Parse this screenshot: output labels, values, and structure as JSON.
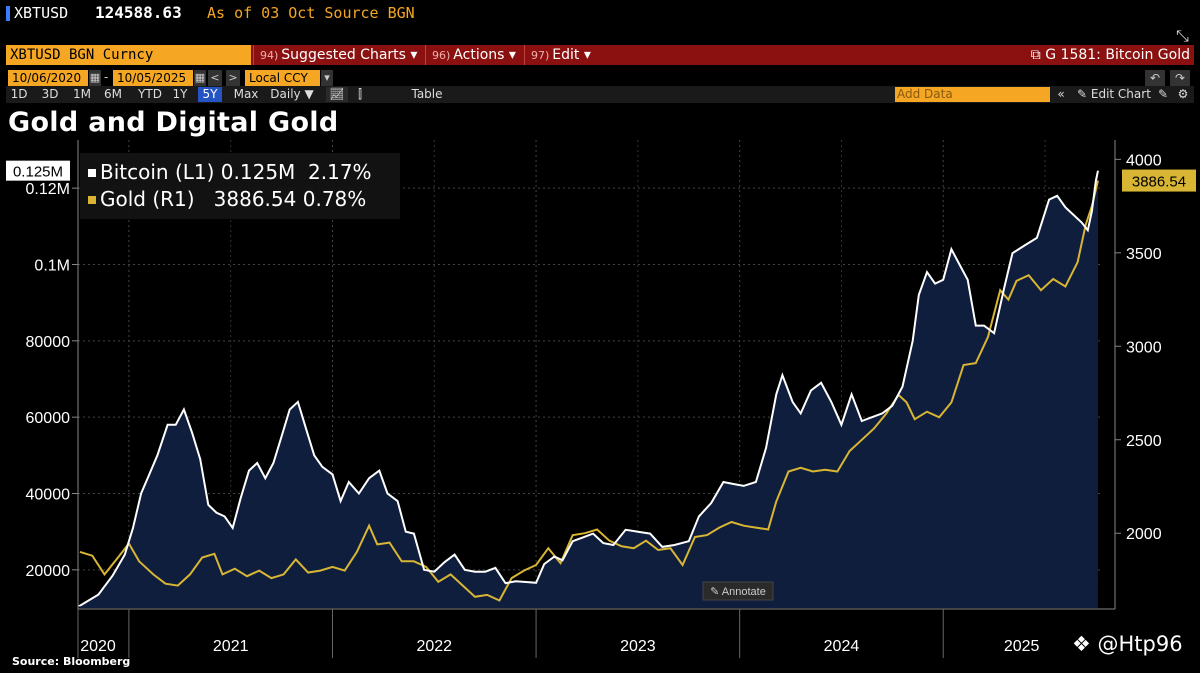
{
  "header": {
    "ticker": "XBTUSD",
    "price": "124588.63",
    "as_of": "As of 03 Oct",
    "source_label": "Source",
    "source_value": "BGN"
  },
  "command_bar": {
    "security": "XBTUSD BGN Curncy",
    "menus": [
      {
        "num": "94)",
        "label": "Suggested Charts ▾"
      },
      {
        "num": "96)",
        "label": "Actions ▾"
      },
      {
        "num": "97)",
        "label": "Edit ▾"
      }
    ],
    "chart_name": "G 1581: Bitcoin Gold"
  },
  "date_controls": {
    "start": "10/06/2020",
    "separator": "-",
    "end": "10/05/2025",
    "currency": "Local CCY"
  },
  "range_buttons": [
    "1D",
    "3D",
    "1M",
    "6M",
    "YTD",
    "1Y",
    "5Y",
    "Max"
  ],
  "active_range": "5Y",
  "frequency": "Daily ▼",
  "table_label": "Table",
  "add_data_placeholder": "Add Data",
  "edit_chart_label": "Edit Chart",
  "annotate_label": "Annotate",
  "source_note": "Source: Bloomberg",
  "watermark": "@Htp96",
  "colors": {
    "bitcoin": "#ffffff",
    "gold": "#d8b634",
    "area_fill": "#0f1e3d",
    "brand_orange": "#f5a623",
    "command_bar": "#8b1010"
  },
  "chart_data": {
    "type": "line",
    "title": "Gold and Digital Gold",
    "x_ticks": [
      "2020",
      "2021",
      "2022",
      "2023",
      "2024",
      "2025"
    ],
    "x_range": [
      2020.75,
      2025.77
    ],
    "left_axis": {
      "ticks": [
        "20000",
        "40000",
        "60000",
        "80000",
        "0.1M",
        "0.12M"
      ],
      "tick_values": [
        20000,
        40000,
        60000,
        80000,
        100000,
        120000
      ],
      "range": [
        10000,
        130000
      ]
    },
    "right_axis": {
      "ticks": [
        "2000",
        "2500",
        "3000",
        "3500",
        "4000"
      ],
      "tick_values": [
        2000,
        2500,
        3000,
        3500,
        4000
      ],
      "range": [
        1600,
        4050
      ]
    },
    "series": [
      {
        "name": "Bitcoin (L1)",
        "last_value": "0.125M",
        "change": "2.17%",
        "axis": "left",
        "area": true,
        "points": [
          [
            2020.76,
            10600
          ],
          [
            2020.85,
            13500
          ],
          [
            2020.92,
            18500
          ],
          [
            2020.98,
            24000
          ],
          [
            2021.02,
            31000
          ],
          [
            2021.06,
            40000
          ],
          [
            2021.1,
            45000
          ],
          [
            2021.14,
            50000
          ],
          [
            2021.19,
            58000
          ],
          [
            2021.23,
            58000
          ],
          [
            2021.27,
            62000
          ],
          [
            2021.31,
            56000
          ],
          [
            2021.35,
            49000
          ],
          [
            2021.39,
            37000
          ],
          [
            2021.43,
            35000
          ],
          [
            2021.47,
            34000
          ],
          [
            2021.51,
            31000
          ],
          [
            2021.55,
            39000
          ],
          [
            2021.59,
            46000
          ],
          [
            2021.63,
            48000
          ],
          [
            2021.67,
            44000
          ],
          [
            2021.71,
            48000
          ],
          [
            2021.75,
            55000
          ],
          [
            2021.79,
            62000
          ],
          [
            2021.83,
            64000
          ],
          [
            2021.87,
            57000
          ],
          [
            2021.91,
            50000
          ],
          [
            2021.95,
            47000
          ],
          [
            2022.0,
            45000
          ],
          [
            2022.04,
            38000
          ],
          [
            2022.08,
            43000
          ],
          [
            2022.13,
            40000
          ],
          [
            2022.18,
            44000
          ],
          [
            2022.23,
            46000
          ],
          [
            2022.27,
            40000
          ],
          [
            2022.32,
            38000
          ],
          [
            2022.36,
            30000
          ],
          [
            2022.4,
            29500
          ],
          [
            2022.45,
            20000
          ],
          [
            2022.5,
            19500
          ],
          [
            2022.55,
            22000
          ],
          [
            2022.6,
            24000
          ],
          [
            2022.65,
            20000
          ],
          [
            2022.7,
            19500
          ],
          [
            2022.75,
            19500
          ],
          [
            2022.8,
            20500
          ],
          [
            2022.85,
            16500
          ],
          [
            2022.9,
            17000
          ],
          [
            2022.95,
            16800
          ],
          [
            2023.0,
            16600
          ],
          [
            2023.04,
            21500
          ],
          [
            2023.09,
            23500
          ],
          [
            2023.13,
            22500
          ],
          [
            2023.18,
            27500
          ],
          [
            2023.23,
            28500
          ],
          [
            2023.28,
            29500
          ],
          [
            2023.33,
            27000
          ],
          [
            2023.38,
            26500
          ],
          [
            2023.44,
            30500
          ],
          [
            2023.5,
            30000
          ],
          [
            2023.56,
            29500
          ],
          [
            2023.62,
            26000
          ],
          [
            2023.68,
            26500
          ],
          [
            2023.75,
            27500
          ],
          [
            2023.8,
            34000
          ],
          [
            2023.86,
            37500
          ],
          [
            2023.92,
            43000
          ],
          [
            2023.97,
            42500
          ],
          [
            2024.02,
            42000
          ],
          [
            2024.08,
            43000
          ],
          [
            2024.13,
            52000
          ],
          [
            2024.18,
            66000
          ],
          [
            2024.21,
            71000
          ],
          [
            2024.26,
            64000
          ],
          [
            2024.3,
            61000
          ],
          [
            2024.35,
            67000
          ],
          [
            2024.4,
            69000
          ],
          [
            2024.45,
            64000
          ],
          [
            2024.5,
            58000
          ],
          [
            2024.55,
            66000
          ],
          [
            2024.6,
            59000
          ],
          [
            2024.65,
            60000
          ],
          [
            2024.7,
            61000
          ],
          [
            2024.75,
            63000
          ],
          [
            2024.8,
            68000
          ],
          [
            2024.85,
            80000
          ],
          [
            2024.88,
            92000
          ],
          [
            2024.92,
            98000
          ],
          [
            2024.96,
            95000
          ],
          [
            2025.0,
            96000
          ],
          [
            2025.04,
            104000
          ],
          [
            2025.08,
            100000
          ],
          [
            2025.12,
            96000
          ],
          [
            2025.16,
            84000
          ],
          [
            2025.2,
            84000
          ],
          [
            2025.25,
            82000
          ],
          [
            2025.3,
            94000
          ],
          [
            2025.34,
            103000
          ],
          [
            2025.4,
            105000
          ],
          [
            2025.46,
            107000
          ],
          [
            2025.52,
            117000
          ],
          [
            2025.56,
            118000
          ],
          [
            2025.6,
            115000
          ],
          [
            2025.64,
            113000
          ],
          [
            2025.68,
            111000
          ],
          [
            2025.71,
            109000
          ],
          [
            2025.73,
            114000
          ],
          [
            2025.75,
            122000
          ],
          [
            2025.76,
            124588
          ]
        ]
      },
      {
        "name": "Gold (R1)",
        "last_value": "3886.54",
        "change": "0.78%",
        "axis": "right",
        "area": false,
        "points": [
          [
            2020.76,
            1900
          ],
          [
            2020.82,
            1880
          ],
          [
            2020.88,
            1780
          ],
          [
            2020.95,
            1875
          ],
          [
            2021.0,
            1945
          ],
          [
            2021.05,
            1850
          ],
          [
            2021.12,
            1780
          ],
          [
            2021.18,
            1730
          ],
          [
            2021.24,
            1720
          ],
          [
            2021.3,
            1780
          ],
          [
            2021.36,
            1870
          ],
          [
            2021.42,
            1890
          ],
          [
            2021.46,
            1780
          ],
          [
            2021.52,
            1810
          ],
          [
            2021.58,
            1770
          ],
          [
            2021.64,
            1800
          ],
          [
            2021.7,
            1760
          ],
          [
            2021.76,
            1780
          ],
          [
            2021.82,
            1860
          ],
          [
            2021.88,
            1790
          ],
          [
            2021.94,
            1800
          ],
          [
            2022.0,
            1820
          ],
          [
            2022.06,
            1800
          ],
          [
            2022.12,
            1900
          ],
          [
            2022.18,
            2040
          ],
          [
            2022.22,
            1940
          ],
          [
            2022.28,
            1950
          ],
          [
            2022.34,
            1850
          ],
          [
            2022.4,
            1850
          ],
          [
            2022.46,
            1820
          ],
          [
            2022.52,
            1740
          ],
          [
            2022.58,
            1780
          ],
          [
            2022.64,
            1720
          ],
          [
            2022.7,
            1660
          ],
          [
            2022.76,
            1670
          ],
          [
            2022.82,
            1640
          ],
          [
            2022.88,
            1760
          ],
          [
            2022.94,
            1800
          ],
          [
            2023.0,
            1830
          ],
          [
            2023.06,
            1920
          ],
          [
            2023.12,
            1840
          ],
          [
            2023.18,
            1990
          ],
          [
            2023.24,
            2000
          ],
          [
            2023.3,
            2020
          ],
          [
            2023.36,
            1960
          ],
          [
            2023.42,
            1930
          ],
          [
            2023.48,
            1920
          ],
          [
            2023.54,
            1960
          ],
          [
            2023.6,
            1910
          ],
          [
            2023.66,
            1920
          ],
          [
            2023.72,
            1830
          ],
          [
            2023.78,
            1980
          ],
          [
            2023.84,
            1990
          ],
          [
            2023.9,
            2030
          ],
          [
            2023.96,
            2060
          ],
          [
            2024.02,
            2040
          ],
          [
            2024.08,
            2030
          ],
          [
            2024.14,
            2020
          ],
          [
            2024.18,
            2170
          ],
          [
            2024.24,
            2330
          ],
          [
            2024.3,
            2350
          ],
          [
            2024.36,
            2330
          ],
          [
            2024.42,
            2340
          ],
          [
            2024.48,
            2330
          ],
          [
            2024.54,
            2440
          ],
          [
            2024.6,
            2500
          ],
          [
            2024.66,
            2560
          ],
          [
            2024.72,
            2640
          ],
          [
            2024.78,
            2740
          ],
          [
            2024.82,
            2700
          ],
          [
            2024.86,
            2610
          ],
          [
            2024.92,
            2650
          ],
          [
            2024.98,
            2620
          ],
          [
            2025.04,
            2700
          ],
          [
            2025.1,
            2900
          ],
          [
            2025.16,
            2910
          ],
          [
            2025.22,
            3050
          ],
          [
            2025.28,
            3300
          ],
          [
            2025.32,
            3250
          ],
          [
            2025.36,
            3350
          ],
          [
            2025.42,
            3380
          ],
          [
            2025.48,
            3300
          ],
          [
            2025.54,
            3360
          ],
          [
            2025.6,
            3320
          ],
          [
            2025.66,
            3450
          ],
          [
            2025.7,
            3650
          ],
          [
            2025.73,
            3750
          ],
          [
            2025.76,
            3886.54
          ]
        ]
      }
    ],
    "grid": true,
    "legend_position": "top-left",
    "current_value_labels": {
      "left": "0.125M",
      "right": "3886.54"
    }
  }
}
